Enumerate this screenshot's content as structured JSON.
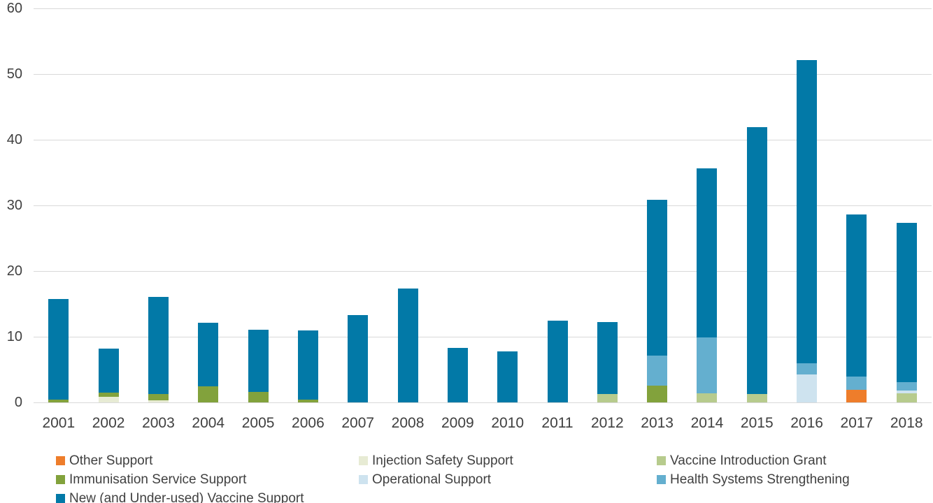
{
  "colors": {
    "background": "#FFFFFF",
    "gridline": "#D9D9D9",
    "axis_text": "#404040",
    "legend_text": "#404040"
  },
  "chart_data": {
    "type": "bar",
    "stacked": true,
    "title": "",
    "xlabel": "",
    "ylabel": "",
    "ylim": [
      0,
      60
    ],
    "yticks": [
      0,
      10,
      20,
      30,
      40,
      50,
      60
    ],
    "grid": true,
    "legend_position": "bottom",
    "categories": [
      "2001",
      "2002",
      "2003",
      "2004",
      "2005",
      "2006",
      "2007",
      "2008",
      "2009",
      "2010",
      "2011",
      "2012",
      "2013",
      "2014",
      "2015",
      "2016",
      "2017",
      "2018"
    ],
    "series": [
      {
        "name": "Other Support",
        "color": "#EE7D2B",
        "values": [
          0,
          0,
          0,
          0,
          0,
          0,
          0,
          0,
          0,
          0,
          0,
          0,
          0,
          0,
          0,
          0,
          1.9,
          0
        ]
      },
      {
        "name": "Injection Safety Support",
        "color": "#E7EBD4",
        "values": [
          0,
          0.9,
          0.3,
          0,
          0,
          0,
          0,
          0,
          0,
          0,
          0,
          0,
          0,
          0,
          0,
          0,
          0,
          0
        ]
      },
      {
        "name": "Vaccine Introduction Grant",
        "color": "#B7CB8D",
        "values": [
          0,
          0,
          0,
          0,
          0,
          0,
          0,
          0,
          0,
          0,
          0,
          1.3,
          0,
          1.4,
          1.3,
          0,
          0,
          1.4
        ]
      },
      {
        "name": "Immunisation Service Support",
        "color": "#82A23C",
        "values": [
          0.4,
          0.6,
          1.0,
          2.5,
          1.6,
          0.4,
          0,
          0,
          0,
          0,
          0,
          0,
          2.6,
          0,
          0,
          0,
          0,
          0
        ]
      },
      {
        "name": "Operational Support",
        "color": "#CEE3EF",
        "values": [
          0,
          0,
          0,
          0,
          0,
          0,
          0,
          0,
          0,
          0,
          0,
          0,
          0,
          0,
          0,
          4.3,
          0,
          0.4
        ]
      },
      {
        "name": "Health Systems Strengthening",
        "color": "#64AFCF",
        "values": [
          0,
          0,
          0,
          0,
          0,
          0,
          0,
          0,
          0,
          0,
          0,
          0,
          4.5,
          8.5,
          0,
          1.7,
          2.0,
          1.3
        ]
      },
      {
        "name": "New (and Under-used) Vaccine Support",
        "color": "#0279A7",
        "values": [
          15.4,
          6.7,
          14.8,
          9.6,
          9.5,
          10.6,
          13.3,
          17.3,
          8.3,
          7.8,
          12.5,
          10.9,
          23.8,
          25.7,
          40.6,
          46.1,
          24.7,
          24.2
        ]
      }
    ],
    "totals": [
      15.8,
      8.2,
      16.1,
      12.1,
      11.1,
      11.0,
      13.3,
      17.3,
      8.3,
      7.8,
      12.5,
      12.2,
      30.9,
      35.6,
      41.9,
      52.1,
      28.6,
      27.3
    ]
  }
}
